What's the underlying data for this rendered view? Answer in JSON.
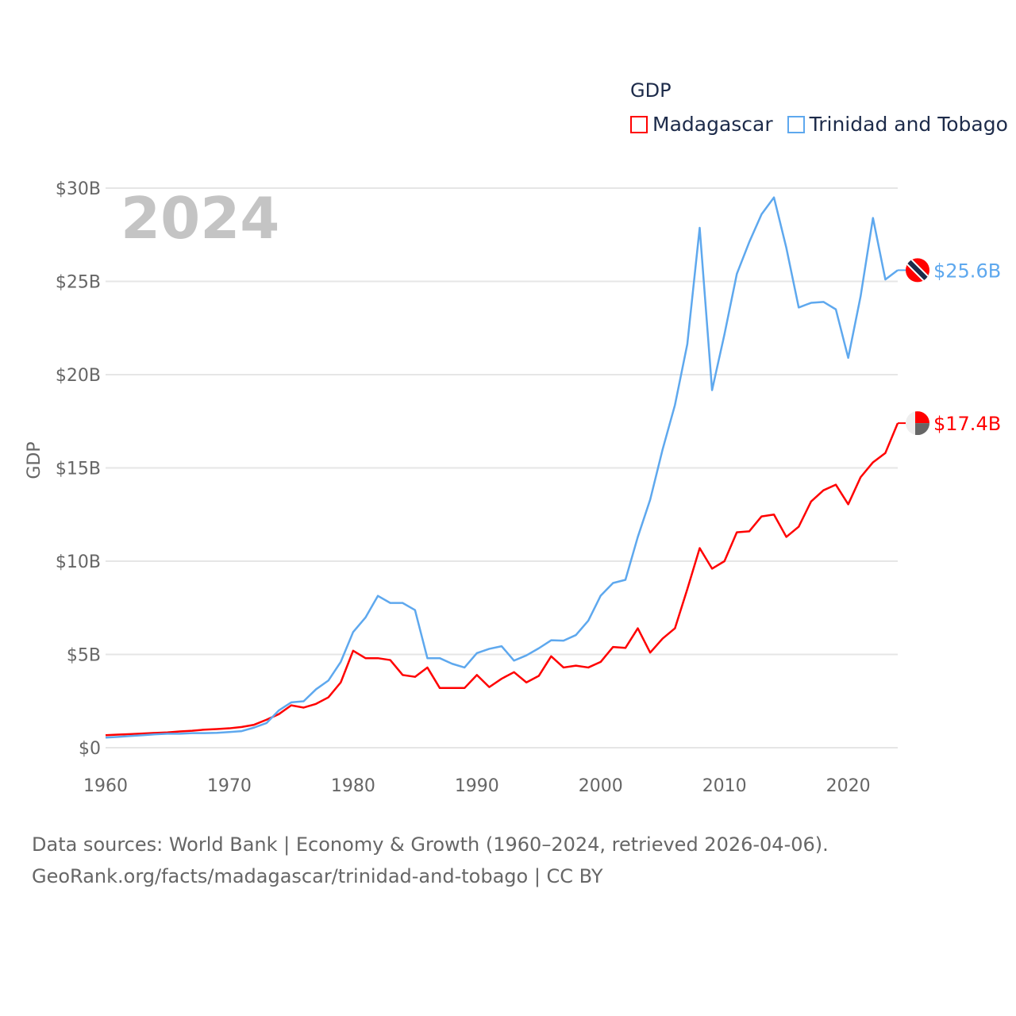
{
  "chart_data": {
    "type": "line",
    "title": "GDP",
    "year_label": "2024",
    "ylabel": "GDP",
    "xlabel": "",
    "xlim": [
      1960,
      2024
    ],
    "ylim": [
      0,
      30
    ],
    "x_ticks": [
      "1960",
      "1970",
      "1980",
      "1990",
      "2000",
      "2010",
      "2020"
    ],
    "x_tick_values": [
      1960,
      1970,
      1980,
      1990,
      2000,
      2010,
      2020
    ],
    "y_ticks": [
      "$0",
      "$5B",
      "$10B",
      "$15B",
      "$20B",
      "$25B",
      "$30B"
    ],
    "y_tick_values": [
      0,
      5,
      10,
      15,
      20,
      25,
      30
    ],
    "grid": true,
    "legend_placement": "top-right",
    "x": [
      1960,
      1961,
      1962,
      1963,
      1964,
      1965,
      1966,
      1967,
      1968,
      1969,
      1970,
      1971,
      1972,
      1973,
      1974,
      1975,
      1976,
      1977,
      1978,
      1979,
      1980,
      1981,
      1982,
      1983,
      1984,
      1985,
      1986,
      1987,
      1988,
      1989,
      1990,
      1991,
      1992,
      1993,
      1994,
      1995,
      1996,
      1997,
      1998,
      1999,
      2000,
      2001,
      2002,
      2003,
      2004,
      2005,
      2006,
      2007,
      2008,
      2009,
      2010,
      2011,
      2012,
      2013,
      2014,
      2015,
      2016,
      2017,
      2018,
      2019,
      2020,
      2021,
      2022,
      2023,
      2024
    ],
    "series": [
      {
        "name": "Madagascar",
        "color": "#ff0000",
        "end_label": "$17.4B",
        "values": [
          0.67,
          0.7,
          0.73,
          0.76,
          0.79,
          0.82,
          0.87,
          0.91,
          0.97,
          1.0,
          1.04,
          1.11,
          1.23,
          1.5,
          1.8,
          2.27,
          2.15,
          2.35,
          2.7,
          3.5,
          5.2,
          4.8,
          4.8,
          4.7,
          3.9,
          3.8,
          4.3,
          3.2,
          3.2,
          3.2,
          3.9,
          3.25,
          3.7,
          4.05,
          3.5,
          3.85,
          4.9,
          4.3,
          4.4,
          4.3,
          4.6,
          5.4,
          5.35,
          6.4,
          5.1,
          5.85,
          6.4,
          8.5,
          10.7,
          9.6,
          10.0,
          11.55,
          11.6,
          12.4,
          12.5,
          11.3,
          11.85,
          13.2,
          13.8,
          14.1,
          13.05,
          14.5,
          15.3,
          15.8,
          17.4
        ]
      },
      {
        "name": "Trinidad and Tobago",
        "color": "#5ea8ee",
        "end_label": "$25.6B",
        "values": [
          0.54,
          0.58,
          0.63,
          0.67,
          0.72,
          0.75,
          0.75,
          0.78,
          0.78,
          0.8,
          0.84,
          0.89,
          1.08,
          1.32,
          2.0,
          2.43,
          2.49,
          3.13,
          3.6,
          4.6,
          6.2,
          6.98,
          8.14,
          7.76,
          7.76,
          7.38,
          4.8,
          4.8,
          4.5,
          4.3,
          5.07,
          5.3,
          5.44,
          4.67,
          4.95,
          5.33,
          5.76,
          5.74,
          6.04,
          6.81,
          8.15,
          8.83,
          9.0,
          11.3,
          13.3,
          15.98,
          18.37,
          21.64,
          27.87,
          19.17,
          22.16,
          25.4,
          27.1,
          28.6,
          29.5,
          26.8,
          23.6,
          23.85,
          23.9,
          23.5,
          20.9,
          24.2,
          28.4,
          25.1,
          25.6
        ]
      }
    ]
  },
  "source": {
    "line1": "Data sources: World Bank | Economy & Growth (1960–2024, retrieved 2026-04-06).",
    "line2": "GeoRank.org/facts/madagascar/trinidad-and-tobago | CC BY"
  }
}
